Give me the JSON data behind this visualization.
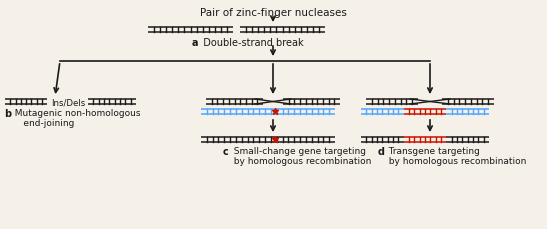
{
  "bg_color": "#f5f0e8",
  "title_text": "Pair of zinc-finger nucleases",
  "label_a_bold": "a",
  "label_a_rest": "  Double-strand break",
  "label_b_bold": "b",
  "label_b_line1": "  Mutagenic non-homologous",
  "label_b_line2": "     end-joining",
  "ins_dels": "Ins/Dels",
  "label_c_bold": "c",
  "label_c_line1": "  Small-change gene targeting",
  "label_c_line2": "  by homologous recombination",
  "label_d_bold": "d",
  "label_d_line1": "  Transgene targeting",
  "label_d_line2": "  by homologous recombination",
  "black": "#1a1a1a",
  "blue": "#4da6ff",
  "red": "#cc1100",
  "fig_w": 5.47,
  "fig_h": 2.3,
  "dpi": 100
}
